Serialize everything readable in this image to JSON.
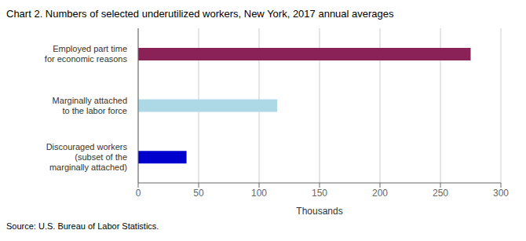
{
  "chart_data": {
    "type": "bar",
    "orientation": "horizontal",
    "title": "Chart 2. Numbers of selected underutilized workers, New York, 2017 annual averages",
    "categories": [
      "Discouraged workers\n(subset of the\nmarginally attached)",
      "Marginally attached\nto the labor force",
      "Employed part time\nfor economic reasons"
    ],
    "values": [
      40,
      115,
      275
    ],
    "colors": [
      "#0000CC",
      "#ADD8E6",
      "#8B2257"
    ],
    "xlabel": "Thousands",
    "xlim": [
      0,
      300
    ],
    "xticks": [
      0,
      50,
      100,
      150,
      200,
      250,
      300
    ],
    "grid": true,
    "source": "Source: U.S. Bureau of Labor Statistics."
  }
}
